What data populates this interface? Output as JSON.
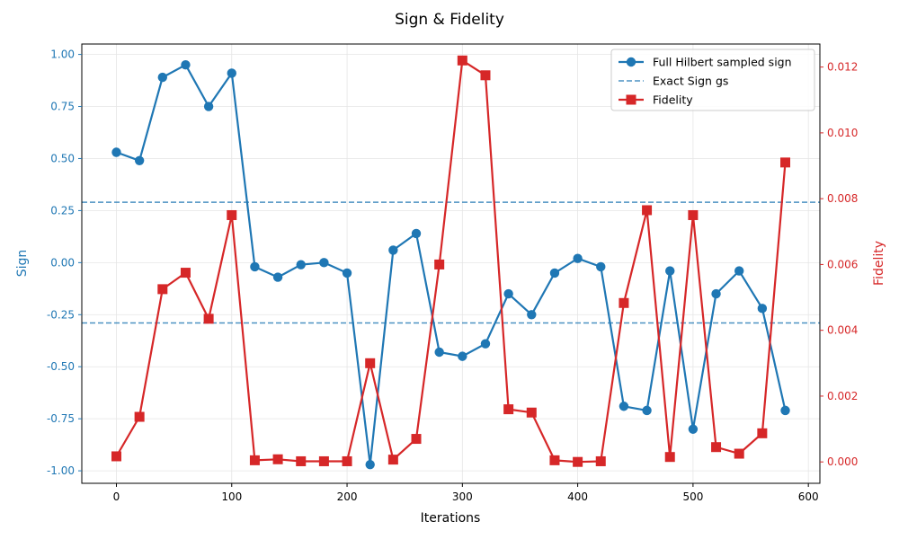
{
  "chart_data": {
    "type": "line",
    "title": "Sign & Fidelity",
    "xlabel": "Iterations",
    "ylabel_left": "Sign",
    "ylabel_right": "Fidelity",
    "xlim": [
      -30,
      610
    ],
    "ylim_left": [
      -1.06,
      1.05
    ],
    "ylim_right": [
      -0.00065,
      0.0127
    ],
    "x_ticks": [
      0,
      100,
      200,
      300,
      400,
      500,
      600
    ],
    "y_left_ticks": [
      -1.0,
      -0.75,
      -0.5,
      -0.25,
      0.0,
      0.25,
      0.5,
      0.75,
      1.0
    ],
    "y_right_ticks": [
      0.0,
      0.002,
      0.004,
      0.006,
      0.008,
      0.01,
      0.012
    ],
    "grid": true,
    "legend_position": "top-right",
    "x": [
      0,
      20,
      40,
      60,
      80,
      100,
      120,
      140,
      160,
      180,
      200,
      220,
      240,
      260,
      280,
      300,
      320,
      340,
      360,
      380,
      400,
      420,
      440,
      460,
      480,
      500,
      520,
      540,
      560,
      580
    ],
    "series": [
      {
        "name": "Full Hilbert sampled sign",
        "axis": "left",
        "color": "#1f77b4",
        "marker": "circle",
        "values": [
          0.53,
          0.49,
          0.89,
          0.95,
          0.75,
          0.91,
          -0.02,
          -0.07,
          -0.01,
          0.0,
          -0.05,
          -0.97,
          0.06,
          0.14,
          -0.43,
          -0.45,
          -0.39,
          -0.15,
          -0.25,
          -0.05,
          0.02,
          -0.02,
          -0.69,
          -0.71,
          -0.04,
          -0.8,
          -0.15,
          -0.04,
          -0.22,
          -0.71
        ]
      },
      {
        "name": "Exact Sign gs",
        "axis": "left",
        "color": "#1f77b4",
        "style": "dashed",
        "hlines": [
          0.29,
          -0.29
        ]
      },
      {
        "name": "Fidelity",
        "axis": "right",
        "color": "#d62728",
        "marker": "square",
        "values": [
          0.00017,
          0.00137,
          0.00525,
          0.00575,
          0.00435,
          0.0075,
          5e-05,
          8e-05,
          2e-05,
          2e-05,
          2e-05,
          0.003,
          7e-05,
          0.0007,
          0.006,
          0.0122,
          0.01175,
          0.0016,
          0.0015,
          5e-05,
          0.0,
          2e-05,
          0.00483,
          0.00765,
          0.00015,
          0.0075,
          0.00045,
          0.00025,
          0.00087,
          0.0091
        ]
      }
    ]
  }
}
